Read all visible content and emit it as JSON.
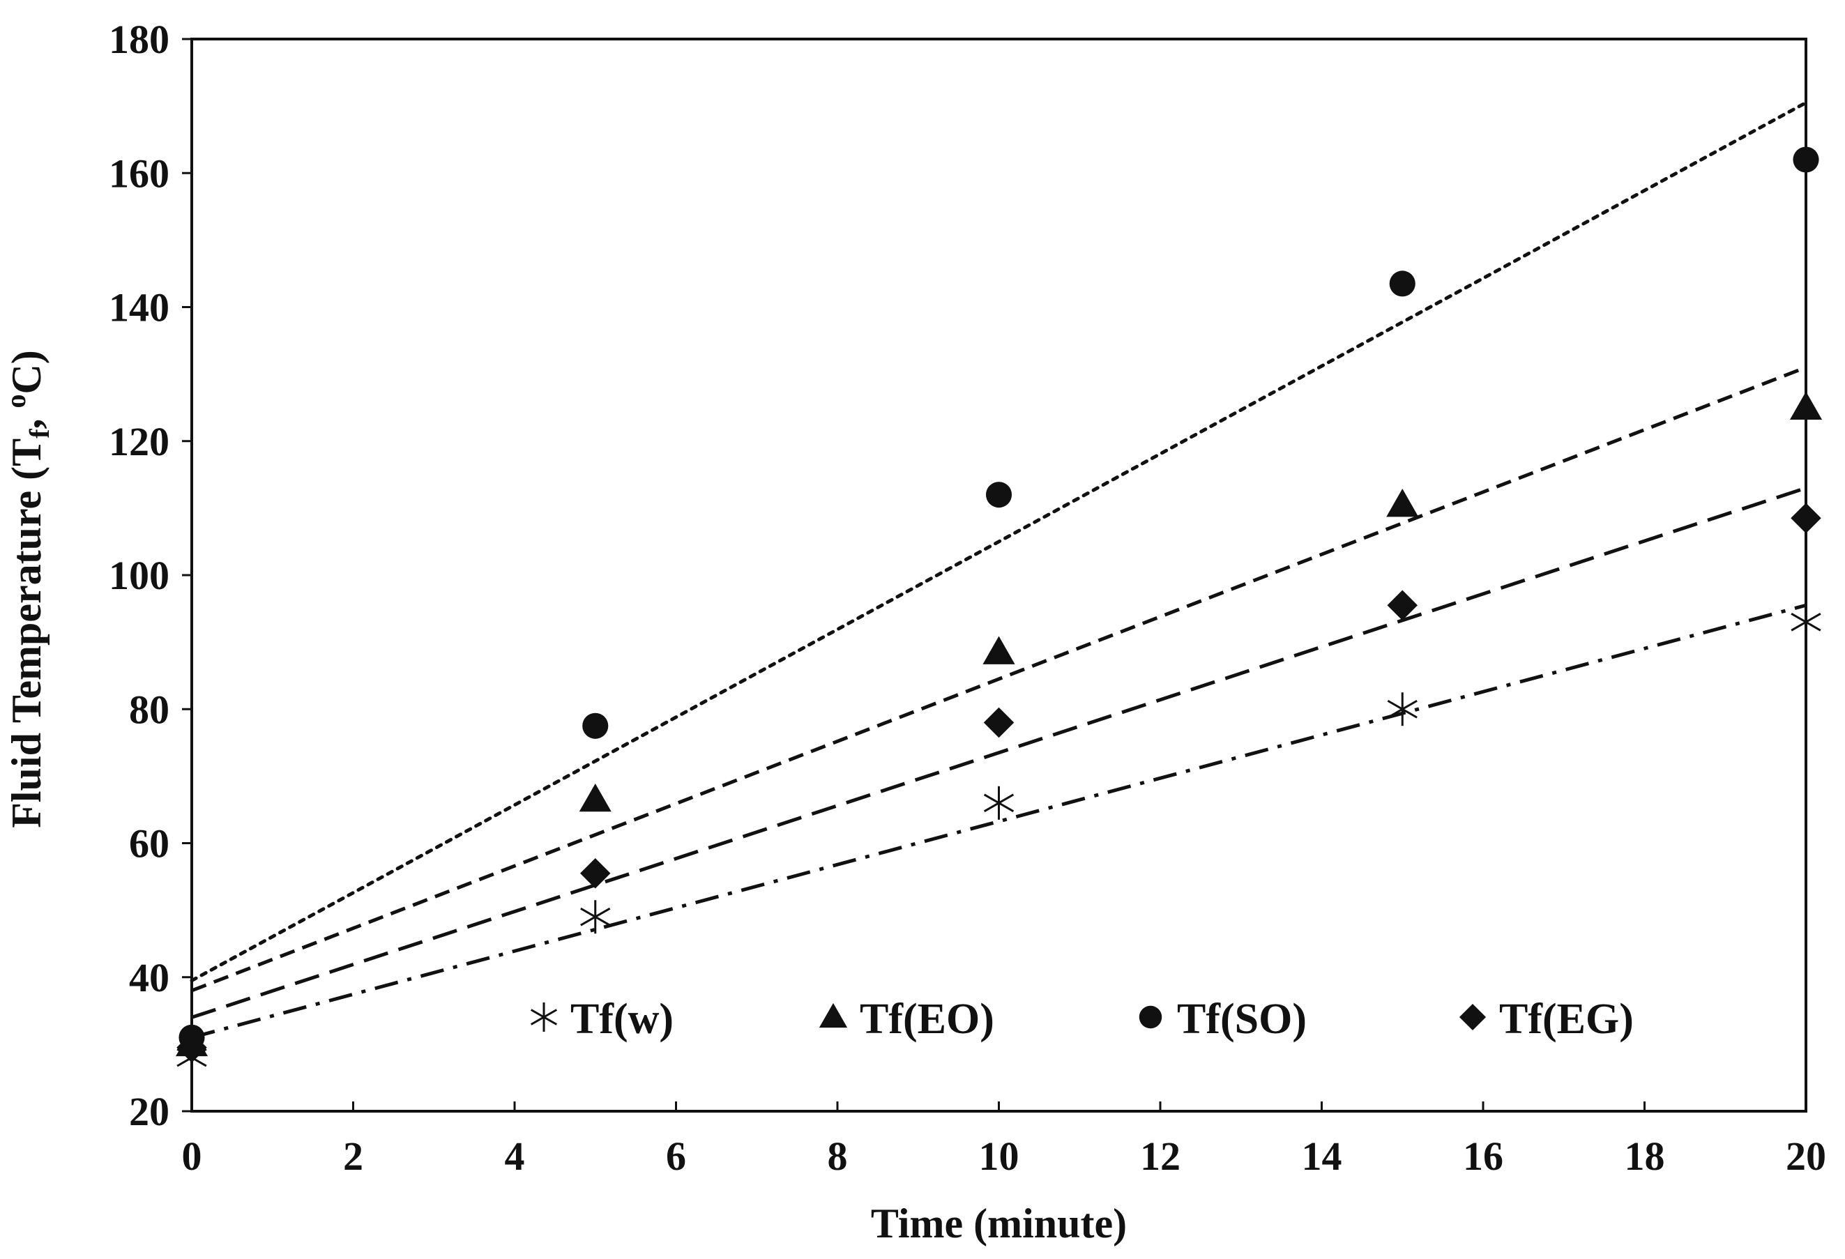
{
  "chart_data": {
    "type": "scatter",
    "title": "",
    "xlabel": "Time (minute)",
    "ylabel": {
      "main": "Fluid Temperature (T",
      "sub": "f",
      "sep": ", ",
      "degree": "o",
      "unit": "C)"
    },
    "xlim": [
      0,
      20
    ],
    "ylim": [
      20,
      180
    ],
    "xticks": [
      0,
      2,
      4,
      6,
      8,
      10,
      12,
      14,
      16,
      18,
      20
    ],
    "yticks": [
      20,
      40,
      60,
      80,
      100,
      120,
      140,
      160,
      180
    ],
    "grid": false,
    "legend_position": "bottom-center",
    "series": [
      {
        "name": "Tf(w)",
        "marker": "asterisk",
        "line_style": "dash-dot",
        "x": [
          0,
          5,
          10,
          15,
          20
        ],
        "y": [
          28,
          49,
          66,
          80,
          93
        ],
        "trend": [
          31,
          95.5
        ]
      },
      {
        "name": "Tf(EO)",
        "marker": "triangle",
        "line_style": "dashed",
        "x": [
          0,
          5,
          10,
          15,
          20
        ],
        "y": [
          30,
          66.5,
          88.5,
          110.5,
          125
        ],
        "trend": [
          38,
          131
        ]
      },
      {
        "name": "Tf(SO)",
        "marker": "circle",
        "line_style": "dotted",
        "x": [
          0,
          5,
          10,
          15,
          20
        ],
        "y": [
          31,
          77.5,
          112,
          143.5,
          162
        ],
        "trend": [
          39.5,
          170.5
        ]
      },
      {
        "name": "Tf(EG)",
        "marker": "diamond",
        "line_style": "long-dash",
        "x": [
          0,
          5,
          10,
          15,
          20
        ],
        "y": [
          29.5,
          55.5,
          78,
          95.5,
          108.5
        ],
        "trend": [
          34,
          113
        ]
      }
    ]
  }
}
